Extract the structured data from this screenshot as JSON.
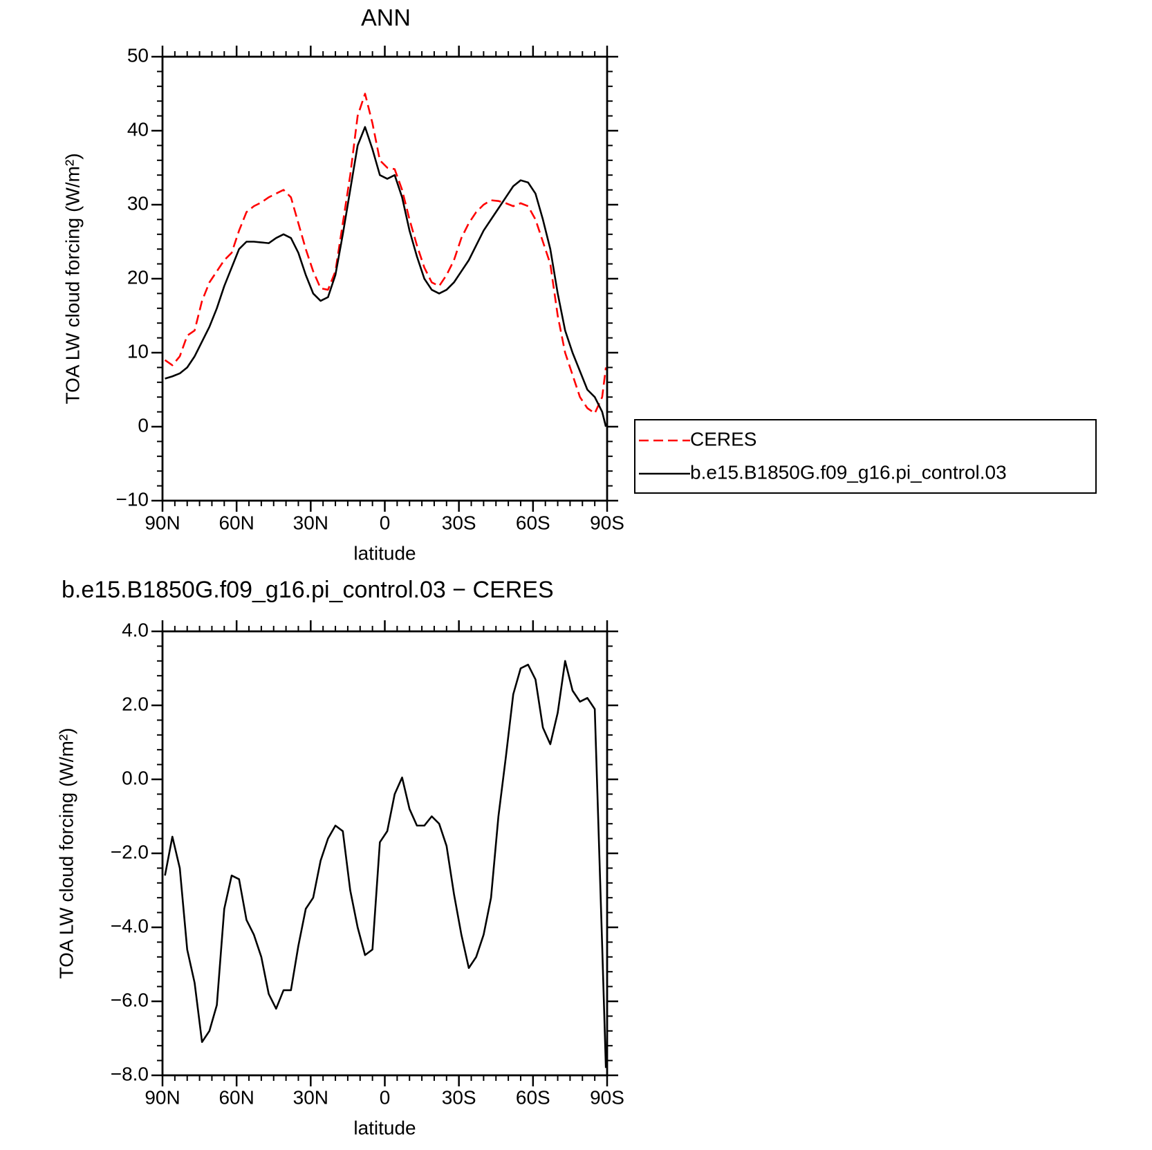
{
  "chart_data": [
    {
      "type": "line",
      "title": "ANN",
      "xlabel": "latitude",
      "ylabel": "TOA LW cloud forcing (W/m²)",
      "x": [
        89,
        86,
        83,
        80,
        77,
        74,
        71,
        68,
        65,
        62,
        59,
        56,
        53,
        50,
        47,
        44,
        41,
        38,
        35,
        32,
        29,
        26,
        23,
        20,
        17,
        14,
        11,
        8,
        5,
        2,
        -1,
        -4,
        -7,
        -10,
        -13,
        -16,
        -19,
        -22,
        -25,
        -28,
        -31,
        -34,
        -37,
        -40,
        -43,
        -46,
        -49,
        -52,
        -55,
        -58,
        -61,
        -64,
        -67,
        -70,
        -73,
        -76,
        -79,
        -82,
        -85,
        -88,
        -89.5
      ],
      "series": [
        {
          "name": "CERES",
          "color": "#ff0000",
          "dashed": true,
          "values": [
            9,
            8.3,
            9.5,
            12.3,
            13,
            17,
            19.5,
            21,
            22.5,
            23.5,
            26.5,
            29,
            29.8,
            30.3,
            31,
            31.5,
            32,
            31,
            27.5,
            24,
            21,
            18.7,
            18.5,
            21,
            27.5,
            34,
            42,
            45,
            41,
            36,
            35,
            34.8,
            32,
            28,
            24.5,
            21.5,
            19.5,
            19,
            20.5,
            22.5,
            25.5,
            27.5,
            29,
            30,
            30.6,
            30.5,
            30.2,
            29.8,
            30.2,
            29.8,
            28,
            25,
            22,
            15,
            10,
            7,
            4,
            2.5,
            1.8,
            4,
            8
          ]
        },
        {
          "name": "b.e15.B1850G.f09_g16.pi_control.03",
          "color": "#000000",
          "dashed": false,
          "values": [
            6.5,
            6.8,
            7.2,
            8,
            9.5,
            11.5,
            13.5,
            16,
            19,
            21.5,
            24,
            25,
            25,
            24.9,
            24.8,
            25.5,
            26,
            25.5,
            23.5,
            20.5,
            18,
            17,
            17.5,
            20.5,
            26,
            32,
            38,
            40.5,
            37.5,
            34,
            33.5,
            34,
            31,
            26.5,
            23,
            20,
            18.5,
            18,
            18.5,
            19.5,
            21,
            22.5,
            24.5,
            26.5,
            28,
            29.5,
            31,
            32.5,
            33.3,
            33,
            31.5,
            28,
            24,
            18,
            13,
            10,
            7.5,
            5,
            4,
            2,
            0
          ]
        }
      ],
      "xlim": [
        90,
        -90
      ],
      "xticks": [
        {
          "value": 90,
          "label": "90N"
        },
        {
          "value": 60,
          "label": "60N"
        },
        {
          "value": 30,
          "label": "30N"
        },
        0,
        {
          "value": -30,
          "label": "30S"
        },
        {
          "value": -60,
          "label": "60S"
        },
        {
          "value": -90,
          "label": "90S"
        }
      ],
      "ylim": [
        -10,
        50
      ],
      "yticks": [
        {
          "value": -10,
          "label": "−10"
        },
        0,
        10,
        20,
        30,
        40,
        50
      ],
      "legend": "right"
    },
    {
      "type": "line",
      "title": "b.e15.B1850G.f09_g16.pi_control.03 − CERES",
      "xlabel": "latitude",
      "ylabel": "TOA LW cloud forcing (W/m²)",
      "x": [
        89,
        86,
        83,
        80,
        77,
        74,
        71,
        68,
        65,
        62,
        59,
        56,
        53,
        50,
        47,
        44,
        41,
        38,
        35,
        32,
        29,
        26,
        23,
        20,
        17,
        14,
        11,
        8,
        5,
        2,
        -1,
        -4,
        -7,
        -10,
        -13,
        -16,
        -19,
        -22,
        -25,
        -28,
        -31,
        -34,
        -37,
        -40,
        -43,
        -46,
        -49,
        -52,
        -55,
        -58,
        -61,
        -64,
        -67,
        -70,
        -73,
        -76,
        -79,
        -82,
        -85,
        -88,
        -89.5
      ],
      "values": [
        -2.6,
        -1.55,
        -2.4,
        -4.6,
        -5.5,
        -7.1,
        -6.8,
        -6.1,
        -3.5,
        -2.6,
        -2.7,
        -3.8,
        -4.2,
        -4.8,
        -5.8,
        -6.2,
        -5.7,
        -5.7,
        -4.5,
        -3.5,
        -3.2,
        -2.2,
        -1.6,
        -1.25,
        -1.4,
        -3,
        -4,
        -4.75,
        -4.6,
        -1.7,
        -1.4,
        -0.4,
        0.05,
        -0.8,
        -1.25,
        -1.25,
        -1,
        -1.2,
        -1.8,
        -3.1,
        -4.2,
        -5.1,
        -4.8,
        -4.2,
        -3.2,
        -1,
        0.6,
        2.3,
        3,
        3.1,
        2.7,
        1.4,
        0.95,
        1.8,
        3.2,
        2.4,
        2.1,
        2.2,
        1.9,
        -4.5,
        -7.8
      ],
      "color": "#000000",
      "xlim": [
        90,
        -90
      ],
      "xticks": [
        {
          "value": 90,
          "label": "90N"
        },
        {
          "value": 60,
          "label": "60N"
        },
        {
          "value": 30,
          "label": "30N"
        },
        0,
        {
          "value": -30,
          "label": "30S"
        },
        {
          "value": -60,
          "label": "60S"
        },
        {
          "value": -90,
          "label": "90S"
        }
      ],
      "ylim": [
        -8,
        4
      ],
      "yticks": [
        {
          "value": -8,
          "label": "−8.0"
        },
        {
          "value": -6,
          "label": "−6.0"
        },
        {
          "value": -4,
          "label": "−4.0"
        },
        {
          "value": -2,
          "label": "−2.0"
        },
        {
          "value": 0,
          "label": "0.0"
        },
        {
          "value": 2,
          "label": "2.0"
        },
        {
          "value": 4,
          "label": "4.0"
        }
      ]
    }
  ]
}
